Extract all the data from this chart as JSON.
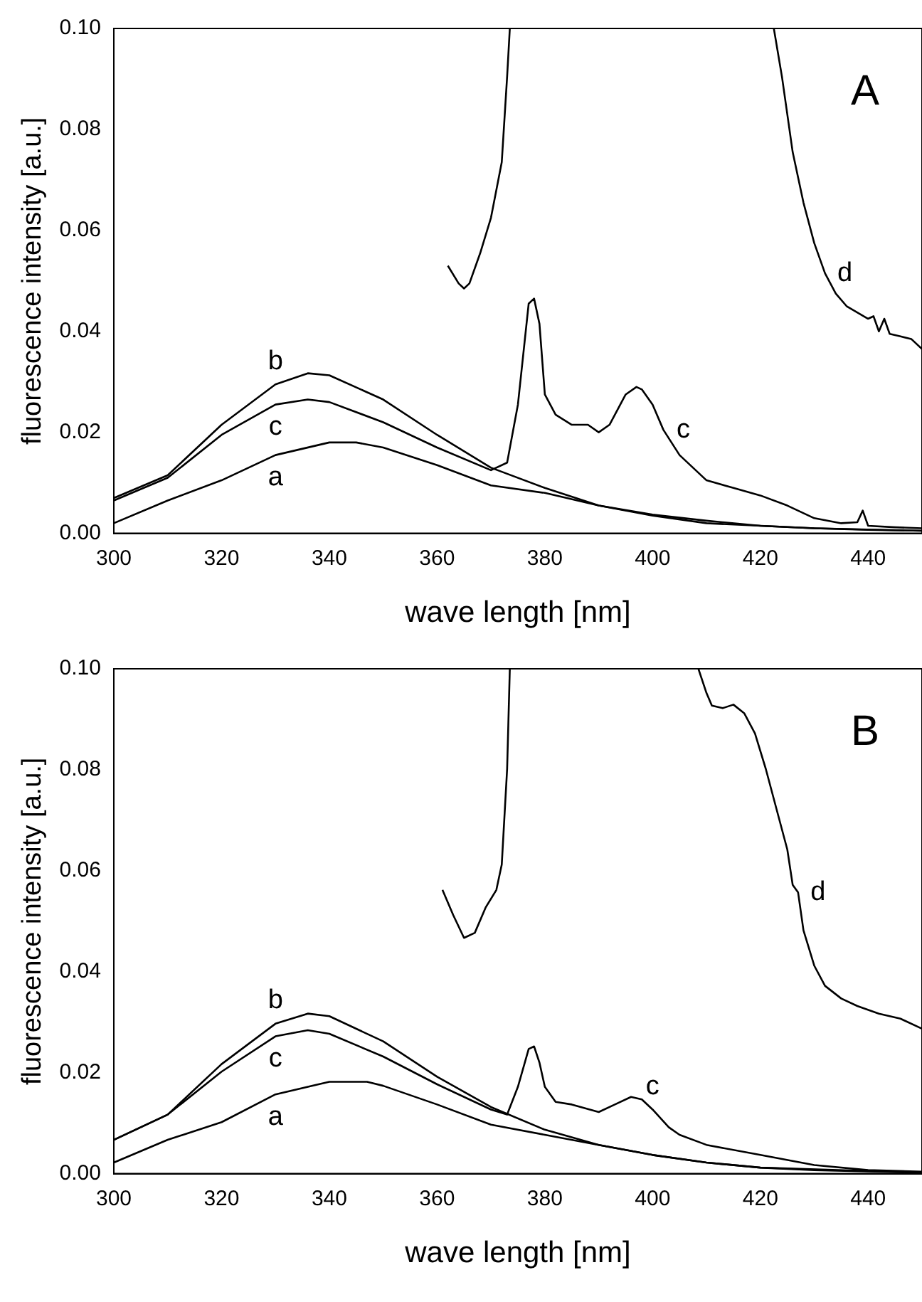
{
  "chart_data": [
    {
      "type": "line",
      "xlabel": "wave length [nm]",
      "ylabel": "fluorescence intensity [a.u.]",
      "xlim": [
        300,
        450
      ],
      "xticks": [
        300,
        320,
        340,
        360,
        380,
        400,
        420,
        440
      ],
      "ylim": [
        0,
        0.1
      ],
      "yticks": [
        {
          "value": 0,
          "label": "0.00"
        },
        {
          "value": 0.02,
          "label": "0.02"
        },
        {
          "value": 0.04,
          "label": "0.04"
        },
        {
          "value": 0.06,
          "label": "0.06"
        },
        {
          "value": 0.08,
          "label": "0.08"
        },
        {
          "value": 0.1,
          "label": "0.10"
        }
      ],
      "grid": false,
      "legend": false,
      "marker": "none",
      "line_style": "solid",
      "annotations": [
        "A",
        {
          "text": "b",
          "x": 330,
          "y": 0.0295
        },
        {
          "text": "c",
          "x": 330,
          "y": 0.0255
        },
        {
          "text": "a",
          "x": 330,
          "y": 0.0155
        },
        {
          "text": "c",
          "x": 402,
          "y": 0.0205
        },
        {
          "text": "d",
          "x": 432,
          "y": 0.0515
        }
      ],
      "series": [
        {
          "color": "#000000",
          "x": [
            300,
            310,
            320,
            330,
            340,
            345,
            350,
            360,
            370,
            380,
            390,
            400,
            410,
            420,
            430,
            450
          ],
          "values": [
            0.002,
            0.0065,
            0.0105,
            0.0155,
            0.018,
            0.018,
            0.017,
            0.0135,
            0.0095,
            0.008,
            0.0055,
            0.0037,
            0.0025,
            0.0015,
            0.001,
            0.0005
          ]
        },
        {
          "color": "#000000",
          "x": [
            300,
            310,
            320,
            330,
            336,
            340,
            350,
            360,
            370,
            380,
            390,
            400,
            410,
            420,
            430,
            440,
            450
          ],
          "values": [
            0.007,
            0.0115,
            0.0215,
            0.0295,
            0.0317,
            0.0313,
            0.0265,
            0.0195,
            0.013,
            0.009,
            0.0055,
            0.0035,
            0.002,
            0.0015,
            0.001,
            0.0007,
            0.0005
          ]
        },
        {
          "color": "#000000",
          "x": [
            300,
            310,
            320,
            330,
            336,
            340,
            350,
            360,
            370,
            373,
            375,
            377,
            378,
            379,
            380,
            382,
            385,
            388,
            390,
            392,
            395,
            397,
            398,
            400,
            402,
            405,
            410,
            415,
            420,
            425,
            430,
            435,
            438,
            439,
            440,
            445,
            450
          ],
          "values": [
            0.0065,
            0.011,
            0.0195,
            0.0255,
            0.0265,
            0.026,
            0.022,
            0.017,
            0.0125,
            0.014,
            0.0255,
            0.0455,
            0.0465,
            0.0415,
            0.0275,
            0.0235,
            0.0215,
            0.0215,
            0.02,
            0.0215,
            0.0275,
            0.029,
            0.0285,
            0.0255,
            0.0205,
            0.0155,
            0.0105,
            0.009,
            0.0075,
            0.0055,
            0.003,
            0.002,
            0.0022,
            0.0045,
            0.0015,
            0.0012,
            0.001
          ]
        },
        {
          "color": "#000000",
          "x": [
            362,
            364,
            365,
            366,
            368,
            370,
            372,
            373,
            373.5,
            400,
            422.5,
            424,
            426,
            428,
            430,
            432,
            434,
            436,
            440,
            441,
            442,
            443,
            444,
            446,
            448,
            450
          ],
          "values": [
            0.053,
            0.0495,
            0.0485,
            0.0495,
            0.0555,
            0.0625,
            0.0735,
            0.0905,
            0.1,
            null,
            0.1,
            0.0905,
            0.0755,
            0.0655,
            0.0575,
            0.0515,
            0.0475,
            0.045,
            0.0425,
            0.043,
            0.04,
            0.0425,
            0.0395,
            0.039,
            0.0385,
            0.0365
          ]
        }
      ]
    },
    {
      "type": "line",
      "xlabel": "wave length [nm]",
      "ylabel": "fluorescence intensity [a.u.]",
      "xlim": [
        300,
        450
      ],
      "xticks": [
        300,
        320,
        340,
        360,
        380,
        400,
        420,
        440
      ],
      "ylim": [
        0,
        0.1
      ],
      "yticks": [
        {
          "value": 0,
          "label": "0.00"
        },
        {
          "value": 0.02,
          "label": "0.02"
        },
        {
          "value": 0.04,
          "label": "0.04"
        },
        {
          "value": 0.06,
          "label": "0.06"
        },
        {
          "value": 0.08,
          "label": "0.08"
        },
        {
          "value": 0.1,
          "label": "0.10"
        }
      ],
      "grid": false,
      "legend": false,
      "marker": "none",
      "line_style": "solid",
      "annotations": [
        "B",
        {
          "text": "b",
          "x": 330,
          "y": 0.0297
        },
        {
          "text": "c",
          "x": 330,
          "y": 0.0272
        },
        {
          "text": "a",
          "x": 330,
          "y": 0.0157
        },
        {
          "text": "c",
          "x": 400,
          "y": 0.0127
        },
        {
          "text": "d",
          "x": 427,
          "y": 0.0557
        }
      ],
      "series": [
        {
          "color": "#000000",
          "x": [
            300,
            310,
            320,
            330,
            340,
            347,
            350,
            360,
            370,
            380,
            390,
            400,
            410,
            420,
            450
          ],
          "values": [
            0.0022,
            0.0067,
            0.0102,
            0.0157,
            0.0182,
            0.0182,
            0.0174,
            0.0137,
            0.0097,
            0.0077,
            0.0057,
            0.0037,
            0.0022,
            0.0012,
            0.0002
          ]
        },
        {
          "color": "#000000",
          "x": [
            300,
            310,
            320,
            330,
            336,
            340,
            350,
            360,
            370,
            380,
            390,
            400,
            410,
            420,
            430,
            450
          ],
          "values": [
            0.0067,
            0.0117,
            0.0217,
            0.0297,
            0.0317,
            0.0312,
            0.0262,
            0.0192,
            0.0132,
            0.0087,
            0.0057,
            0.0037,
            0.0022,
            0.0012,
            0.0007,
            0.0002
          ]
        },
        {
          "color": "#000000",
          "x": [
            300,
            310,
            320,
            330,
            336,
            340,
            350,
            360,
            370,
            373,
            375,
            377,
            378,
            379,
            380,
            382,
            385,
            390,
            393,
            396,
            398,
            400,
            403,
            405,
            410,
            420,
            430,
            440,
            450
          ],
          "values": [
            0.0067,
            0.0117,
            0.0202,
            0.0272,
            0.0284,
            0.0277,
            0.0232,
            0.0177,
            0.0127,
            0.0117,
            0.0172,
            0.0247,
            0.0252,
            0.022,
            0.0172,
            0.0142,
            0.0137,
            0.0122,
            0.0137,
            0.0152,
            0.0147,
            0.0127,
            0.0092,
            0.0077,
            0.0057,
            0.0037,
            0.0017,
            0.0007,
            0.0004
          ]
        },
        {
          "color": "#000000",
          "x": [
            361,
            363,
            365,
            367,
            369,
            371,
            372,
            373,
            373.5,
            390,
            408.5,
            410,
            411,
            413,
            415,
            417,
            419,
            421,
            423,
            425,
            426,
            427,
            428,
            430,
            432,
            435,
            438,
            442,
            446,
            450
          ],
          "values": [
            0.0562,
            0.0512,
            0.0467,
            0.0477,
            0.0527,
            0.0562,
            0.0612,
            0.0802,
            0.1,
            null,
            0.1,
            0.0952,
            0.0927,
            0.0922,
            0.0929,
            0.0912,
            0.0872,
            0.0802,
            0.0722,
            0.0642,
            0.0572,
            0.0557,
            0.0482,
            0.0412,
            0.0372,
            0.0347,
            0.0332,
            0.0317,
            0.0307,
            0.0287
          ]
        }
      ]
    }
  ]
}
